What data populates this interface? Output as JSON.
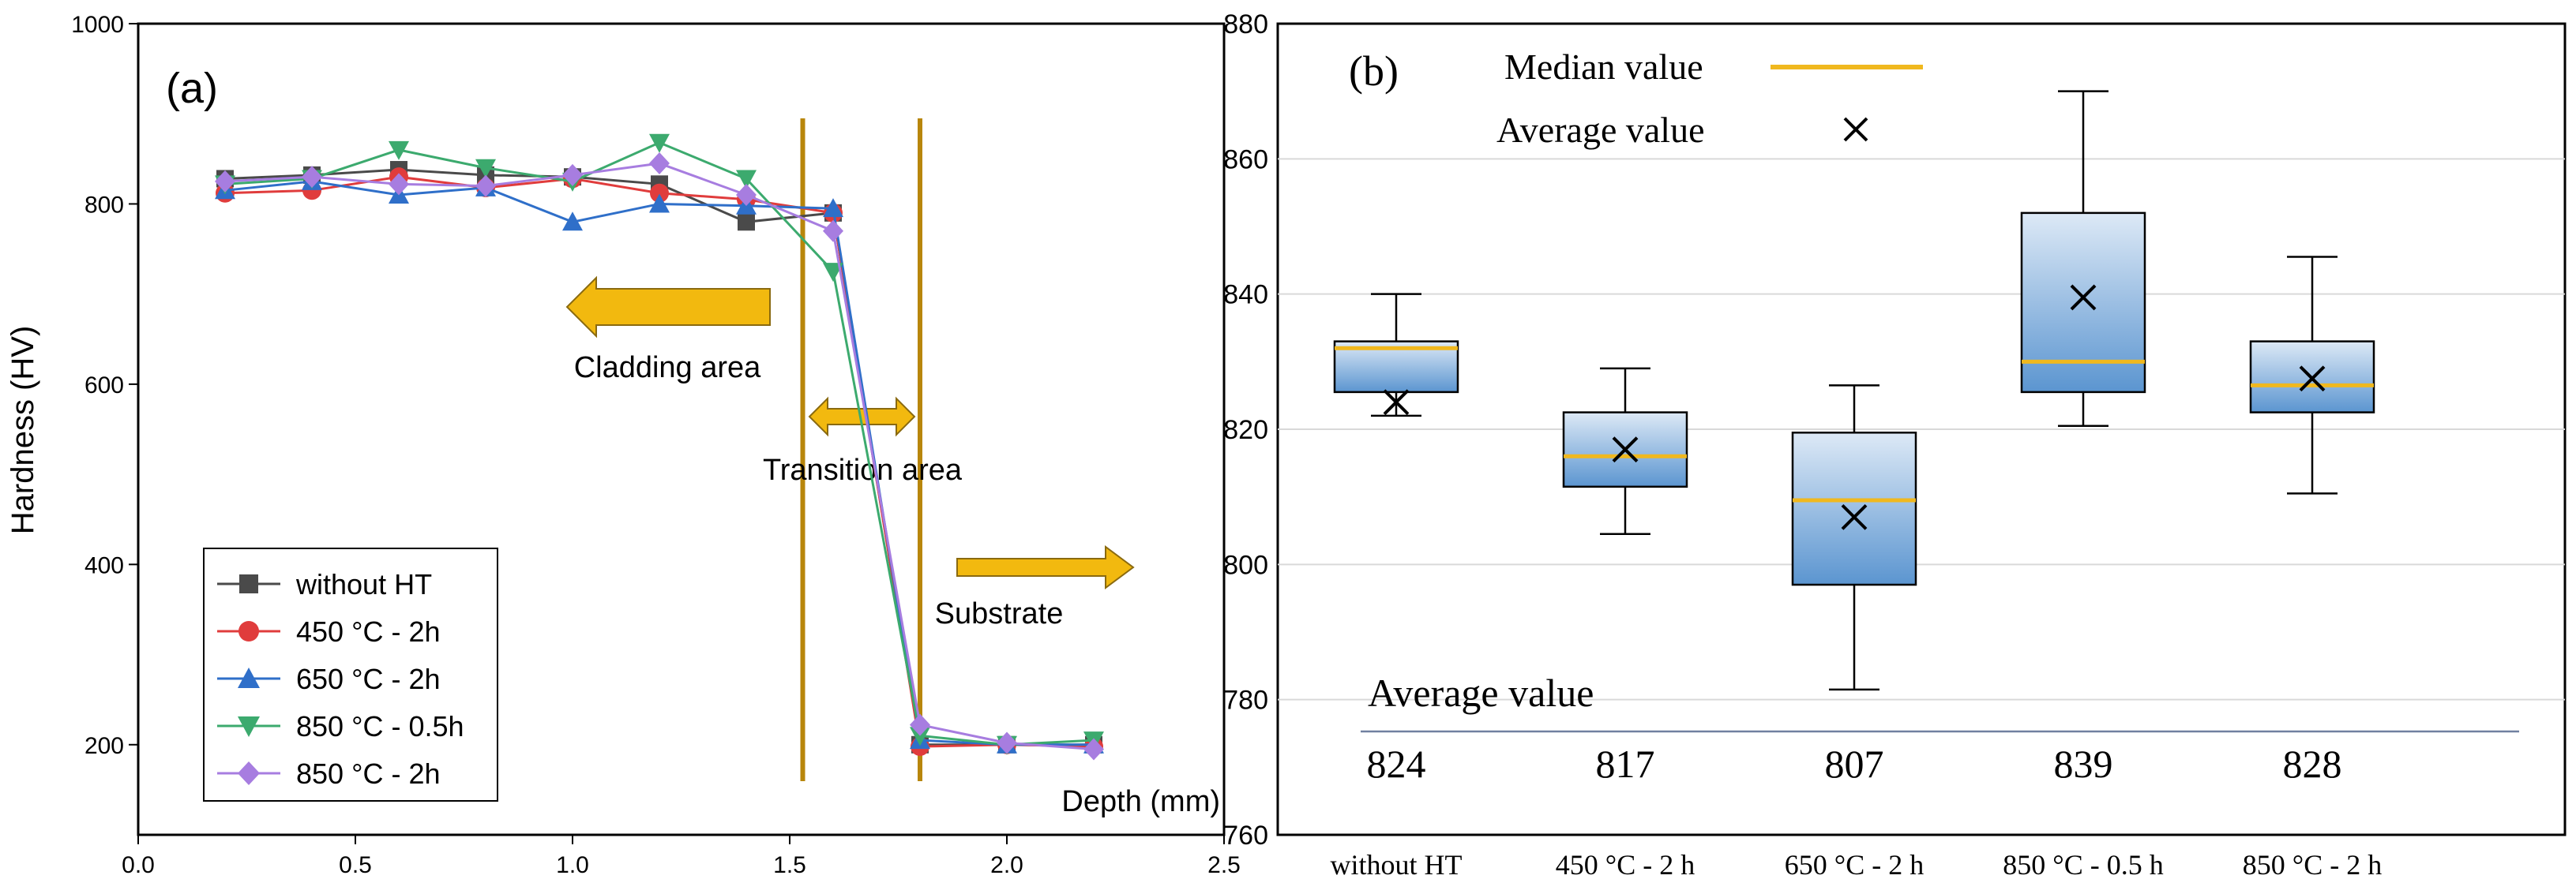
{
  "chart_data": [
    {
      "panel": "(a)",
      "type": "line",
      "xlabel": "Depth (mm)",
      "ylabel": "Hardness (HV)",
      "xlim": [
        0.0,
        2.5
      ],
      "ylim": [
        100,
        1000
      ],
      "xticks": [
        "0.0",
        "0.5",
        "1.0",
        "1.5",
        "2.0",
        "2.5"
      ],
      "yticks": [
        "200",
        "400",
        "600",
        "800",
        "1000"
      ],
      "x": [
        0.2,
        0.4,
        0.6,
        0.8,
        1.0,
        1.2,
        1.4,
        1.6,
        1.8,
        2.0,
        2.2
      ],
      "series": [
        {
          "name": "without HT",
          "color": "#4a4a4a",
          "marker": "square",
          "values": [
            828,
            832,
            838,
            832,
            830,
            822,
            780,
            790,
            200,
            200,
            200
          ]
        },
        {
          "name": "450 °C - 2h",
          "color": "#e03c3c",
          "marker": "circle",
          "values": [
            812,
            815,
            830,
            818,
            828,
            812,
            805,
            790,
            198,
            200,
            198
          ]
        },
        {
          "name": "650 °C - 2h",
          "color": "#2f6fc9",
          "marker": "triangle-up",
          "values": [
            815,
            825,
            810,
            818,
            780,
            800,
            798,
            795,
            205,
            200,
            200
          ]
        },
        {
          "name": "850 °C - 0.5h",
          "color": "#3caa6e",
          "marker": "triangle-down",
          "values": [
            822,
            828,
            860,
            840,
            825,
            868,
            828,
            725,
            210,
            200,
            205
          ]
        },
        {
          "name": "850 °C - 2h",
          "color": "#a77de0",
          "marker": "diamond",
          "values": [
            825,
            830,
            822,
            820,
            832,
            845,
            810,
            770,
            222,
            202,
            195
          ]
        }
      ],
      "vertical_lines_x": [
        1.53,
        1.8
      ],
      "annotations": [
        "Cladding area",
        "Transition area",
        "Substrate"
      ],
      "legend_position": "bottom-left"
    },
    {
      "panel": "(b)",
      "type": "box",
      "ylim": [
        760,
        880
      ],
      "yticks": [
        "760",
        "780",
        "800",
        "820",
        "840",
        "860",
        "880"
      ],
      "categories": [
        "without HT",
        "450 °C - 2 h",
        "650 °C - 2 h",
        "850 °C - 0.5 h",
        "850 °C - 2 h"
      ],
      "boxes": [
        {
          "whisker_low": 822,
          "q1": 825.5,
          "median": 832,
          "q3": 833,
          "whisker_high": 840,
          "mean": 824
        },
        {
          "whisker_low": 804.5,
          "q1": 811.5,
          "median": 816,
          "q3": 822.5,
          "whisker_high": 829,
          "mean": 817
        },
        {
          "whisker_low": 781.5,
          "q1": 797,
          "median": 809.5,
          "q3": 819.5,
          "whisker_high": 826.5,
          "mean": 807
        },
        {
          "whisker_low": 820.5,
          "q1": 825.5,
          "median": 830,
          "q3": 852,
          "whisker_high": 870,
          "mean": 839.5
        },
        {
          "whisker_low": 810.5,
          "q1": 822.5,
          "median": 826.5,
          "q3": 833,
          "whisker_high": 845.5,
          "mean": 827.5
        }
      ],
      "average_row_label": "Average value",
      "average_row_values": [
        "824",
        "817",
        "807",
        "839",
        "828"
      ],
      "legend": {
        "median_label": "Median value",
        "average_label": "Average value",
        "median_color": "#f0b81e"
      },
      "legend_position": "top-left"
    }
  ]
}
